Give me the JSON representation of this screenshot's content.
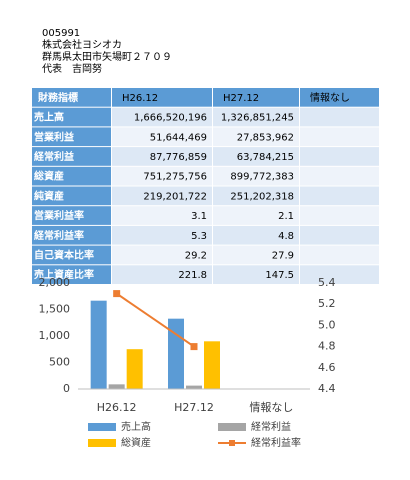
{
  "header": {
    "code": "005991",
    "company": "株式会社ヨシオカ",
    "address": "群馬県太田市矢場町２７０９",
    "representative": "代表　吉岡努"
  },
  "table": {
    "header": [
      "財務指標",
      "H26.12",
      "H27.12",
      "情報なし"
    ],
    "rows": [
      [
        "売上高",
        "1,666,520,196",
        "1,326,851,245"
      ],
      [
        "営業利益",
        "51,644,469",
        "27,853,962"
      ],
      [
        "経常利益",
        "87,776,859",
        "63,784,215"
      ],
      [
        "総資産",
        "751,275,756",
        "899,772,383"
      ],
      [
        "純資産",
        "219,201,722",
        "251,202,318"
      ],
      [
        "営業利益率",
        "3.1",
        "2.1"
      ],
      [
        "経常利益率",
        "5.3",
        "4.8"
      ],
      [
        "自己資本比率",
        "29.2",
        "27.9"
      ],
      [
        "売上資産比率",
        "221.8",
        "147.5"
      ]
    ]
  },
  "chart_data": {
    "type": "bar",
    "categories": [
      "H26.12",
      "H27.12",
      "情報なし"
    ],
    "series": [
      {
        "name": "売上高",
        "color": "#5b9bd5",
        "values": [
          1666.5,
          1326.9,
          null
        ]
      },
      {
        "name": "経常利益",
        "color": "#a5a5a5",
        "values": [
          87.8,
          63.8,
          null
        ]
      },
      {
        "name": "総資産",
        "color": "#ffc000",
        "values": [
          751.3,
          899.8,
          null
        ]
      },
      {
        "name": "経常利益率",
        "color": "#ed7d31",
        "type": "line",
        "axis": "y2",
        "values": [
          5.3,
          4.8,
          null
        ]
      }
    ],
    "ylim": [
      0,
      2000
    ],
    "yticks": [
      0,
      500,
      {
        "value": 1000,
        "label": "1,000"
      },
      {
        "value": 1500,
        "label": "1,500"
      },
      {
        "value": 2000,
        "label": "2,000"
      }
    ],
    "y2lim": [
      4.4,
      5.4
    ],
    "y2ticks": [
      4.4,
      4.6,
      4.8,
      {
        "value": 5,
        "label": "5.0"
      },
      5.2,
      5.4
    ],
    "grid": false,
    "legend": "bottom"
  }
}
